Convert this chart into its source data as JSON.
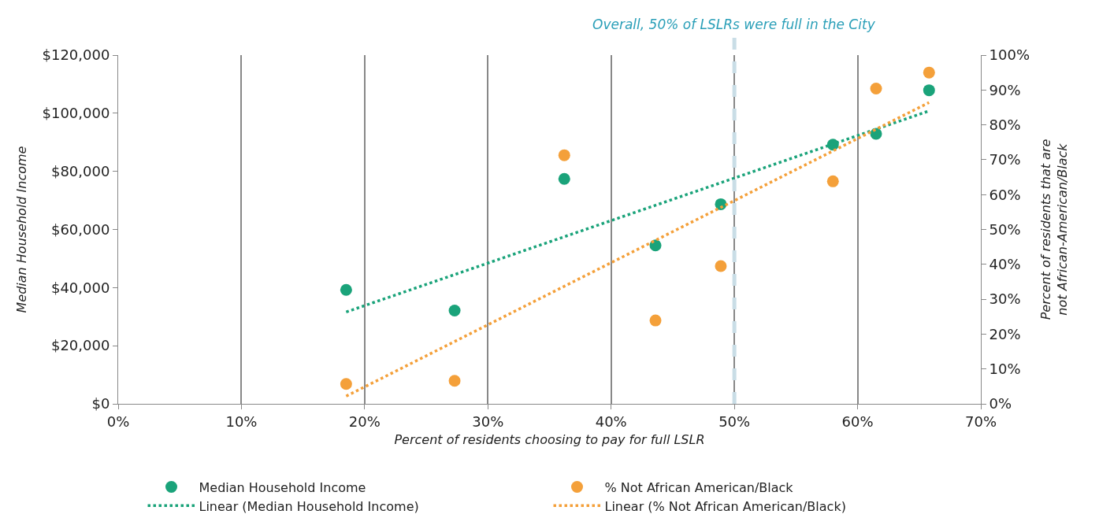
{
  "chart_data": {
    "type": "scatter",
    "xlabel": "Percent of residents choosing to pay for full LSLR",
    "ylabel": "Median Household Income",
    "y2label": "Percent of residents that are\nnot African-American/Black",
    "xlim": [
      0,
      70
    ],
    "xticks": [
      {
        "value": 0,
        "label": "0%"
      },
      {
        "value": 10,
        "label": "10%"
      },
      {
        "value": 20,
        "label": "20%"
      },
      {
        "value": 30,
        "label": "30%"
      },
      {
        "value": 40,
        "label": "40%"
      },
      {
        "value": 50,
        "label": "50%"
      },
      {
        "value": 60,
        "label": "60%"
      },
      {
        "value": 70,
        "label": "70%"
      }
    ],
    "ylim": [
      0,
      120000
    ],
    "yticks": [
      {
        "value": 0,
        "label": "$0"
      },
      {
        "value": 20000,
        "label": "$20,000"
      },
      {
        "value": 40000,
        "label": "$40,000"
      },
      {
        "value": 60000,
        "label": "$60,000"
      },
      {
        "value": 80000,
        "label": "$80,000"
      },
      {
        "value": 100000,
        "label": "$100,000"
      },
      {
        "value": 120000,
        "label": "$120,000"
      }
    ],
    "y2lim": [
      0,
      100
    ],
    "y2ticks": [
      {
        "value": 0,
        "label": "0%"
      },
      {
        "value": 10,
        "label": "10%"
      },
      {
        "value": 20,
        "label": "20%"
      },
      {
        "value": 30,
        "label": "30%"
      },
      {
        "value": 40,
        "label": "40%"
      },
      {
        "value": 50,
        "label": "50%"
      },
      {
        "value": 60,
        "label": "60%"
      },
      {
        "value": 70,
        "label": "70%"
      },
      {
        "value": 80,
        "label": "80%"
      },
      {
        "value": 90,
        "label": "90%"
      },
      {
        "value": 100,
        "label": "100%"
      }
    ],
    "grid": "x",
    "legend": "bottom",
    "series": [
      {
        "name": "Median Household Income",
        "marker": "circle",
        "color": "#1aa37a",
        "x": [
          18.5,
          27.3,
          36.2,
          43.6,
          48.9,
          58.0,
          61.5,
          65.8
        ],
        "values": [
          39200,
          32100,
          77400,
          54500,
          68700,
          89200,
          92900,
          107900
        ]
      },
      {
        "name": "% Not African American/Black",
        "marker": "circle",
        "axis": "y2",
        "color": "#f4a03a",
        "x": [
          18.5,
          27.3,
          36.2,
          43.6,
          48.9,
          58.0,
          61.5,
          65.8
        ],
        "values": [
          5.7,
          6.6,
          71.3,
          23.9,
          39.5,
          63.8,
          90.4,
          95.0
        ]
      },
      {
        "name": "Linear (Median Household Income)",
        "type": "line",
        "line_style": "dotted",
        "color": "#1aa37a",
        "x": [
          18.5,
          65.8
        ],
        "values": [
          31600,
          100800
        ]
      },
      {
        "name": "Linear (% Not African American/Black)",
        "type": "line",
        "line_style": "dotted",
        "axis": "y2",
        "color": "#f4a03a",
        "x": [
          18.5,
          65.8
        ],
        "values": [
          2.2,
          86.4
        ]
      }
    ],
    "ref_lines": [
      {
        "axis": "x",
        "value": 50,
        "label": "Overall, 50% of LSLRs were full in the City",
        "color": "#c9dde6",
        "line_style": "dashed"
      }
    ]
  }
}
